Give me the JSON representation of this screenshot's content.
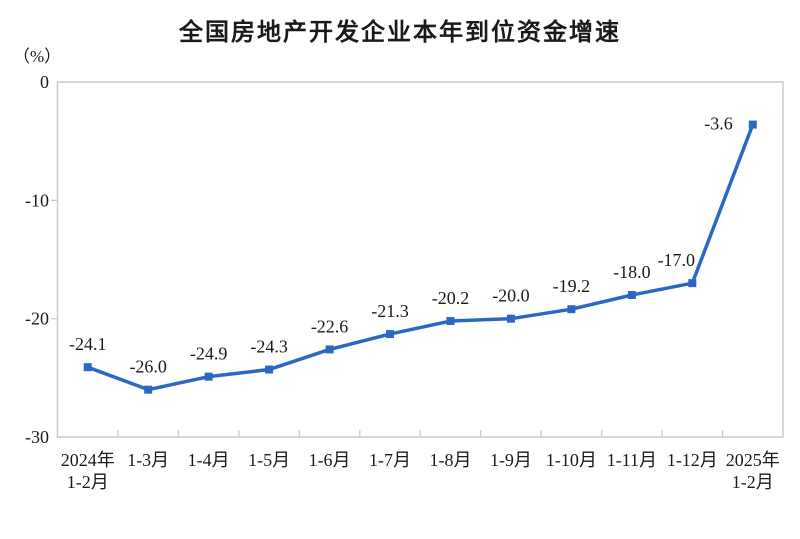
{
  "chart_data": {
    "type": "line",
    "title": "全国房地产开发企业本年到位资金增速",
    "unit_label": "（%）",
    "categories": [
      "2024年\n1-2月",
      "1-3月",
      "1-4月",
      "1-5月",
      "1-6月",
      "1-7月",
      "1-8月",
      "1-9月",
      "1-10月",
      "1-11月",
      "1-12月",
      "2025年\n1-2月"
    ],
    "values": [
      -24.1,
      -26.0,
      -24.9,
      -24.3,
      -22.6,
      -21.3,
      -20.2,
      -20.0,
      -19.2,
      -18.0,
      -17.0,
      -3.6
    ],
    "data_labels": [
      "-24.1",
      "-26.0",
      "-24.9",
      "-24.3",
      "-22.6",
      "-21.3",
      "-20.2",
      "-20.0",
      "-19.2",
      "-18.0",
      "-17.0",
      "-3.6"
    ],
    "xlabel": "",
    "ylabel": "（%）",
    "ylim": [
      -30,
      0
    ],
    "yticks": [
      0,
      -10,
      -20,
      -30
    ],
    "ytick_labels": [
      "0",
      "-10",
      "-20",
      "-30"
    ],
    "grid": false,
    "legend_position": "none",
    "marker": "square",
    "colors": {
      "line": "#2b68c4",
      "marker": "#2b68c4",
      "text": "#1a1a1a",
      "axis_border": "#c9c9c9",
      "background": "#ffffff"
    }
  }
}
